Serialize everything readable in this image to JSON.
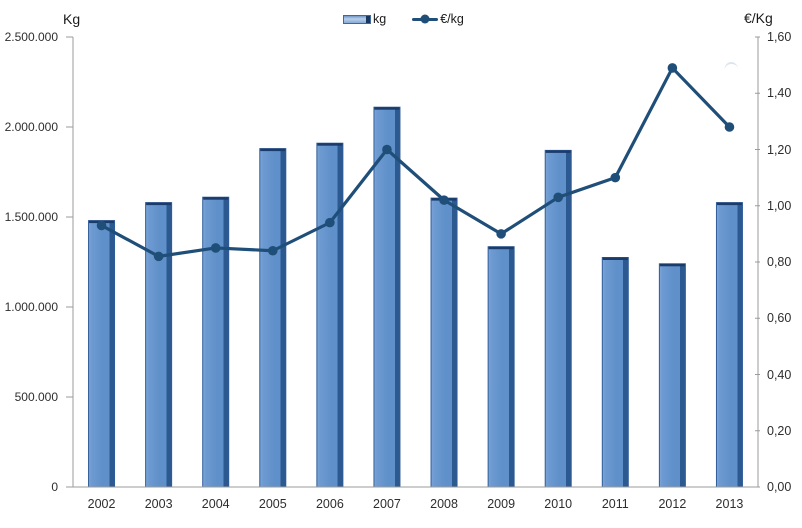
{
  "chart_data": {
    "type": "combo-bar-line",
    "title": "",
    "categories": [
      "2002",
      "2003",
      "2004",
      "2005",
      "2006",
      "2007",
      "2008",
      "2009",
      "2010",
      "2011",
      "2012",
      "2013"
    ],
    "series": [
      {
        "name": "kg",
        "type": "bar",
        "axis": "left",
        "values": [
          1480000,
          1580000,
          1610000,
          1880000,
          1910000,
          2110000,
          1605000,
          1335000,
          1870000,
          1275000,
          1240000,
          1580000
        ]
      },
      {
        "name": "€/kg",
        "type": "line",
        "axis": "right",
        "values": [
          0.93,
          0.82,
          0.85,
          0.84,
          0.94,
          1.2,
          1.02,
          0.9,
          1.03,
          1.1,
          1.49,
          1.28
        ]
      }
    ],
    "left_axis": {
      "title": "Kg",
      "min": 0,
      "max": 2500000,
      "step": 500000,
      "tick_labels_top_to_bottom": [
        "2.500.000",
        "2.000.000",
        "1.500.000",
        "1.000.000",
        "500.000",
        "0"
      ]
    },
    "right_axis": {
      "title": "€/Kg",
      "min": 0,
      "max": 1.6,
      "step": 0.2,
      "tick_labels_top_to_bottom": [
        "1,60",
        "1,40",
        "1,20",
        "1,00",
        "0,80",
        "0,60",
        "0,40",
        "0,20",
        "0,00"
      ]
    },
    "legend_position": "top-center",
    "grid": "off",
    "colors": {
      "bar_fill": "#6090c9",
      "bar_fill_light": "#7da6d8",
      "bar_side_dark": "#2d5991",
      "bar_border": "#2f5c99",
      "bar_cap": "#1b3b6b",
      "line": "#1f4e79",
      "axis": "#9b9b9b",
      "text": "#2e2e2e"
    }
  }
}
